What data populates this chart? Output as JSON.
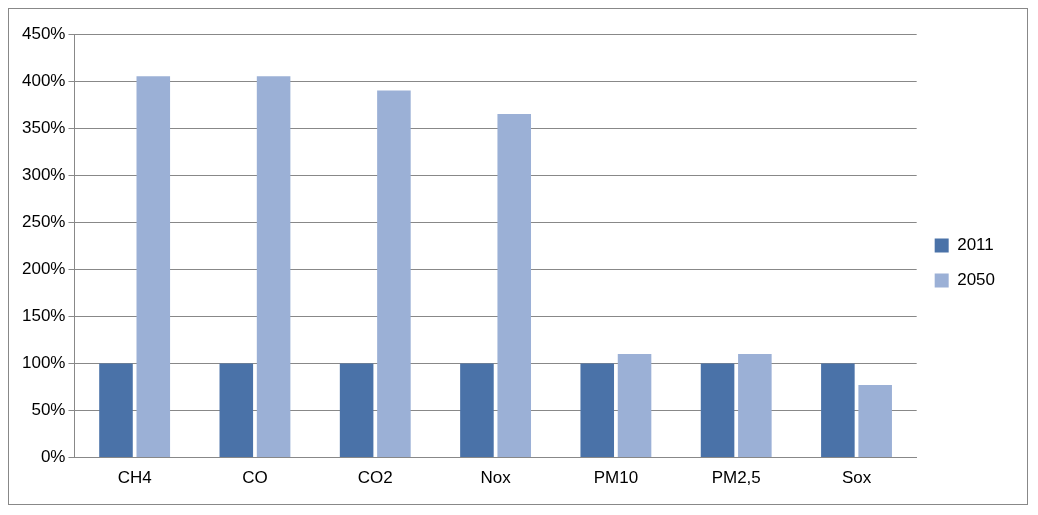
{
  "chart_data": {
    "type": "bar",
    "categories": [
      "CH4",
      "CO",
      "CO2",
      "Nox",
      "PM10",
      "PM2,5",
      "Sox"
    ],
    "series": [
      {
        "name": "2011",
        "color": "#4a72a8",
        "values": [
          100,
          100,
          100,
          100,
          100,
          100,
          100
        ]
      },
      {
        "name": "2050",
        "color": "#9bb0d6",
        "values": [
          405,
          405,
          390,
          365,
          110,
          110,
          77
        ]
      }
    ],
    "ylim": [
      0,
      450
    ],
    "yticks": [
      {
        "value": 0,
        "label": "0%"
      },
      {
        "value": 50,
        "label": "50%"
      },
      {
        "value": 100,
        "label": "100%"
      },
      {
        "value": 150,
        "label": "150%"
      },
      {
        "value": 200,
        "label": "200%"
      },
      {
        "value": 250,
        "label": "250%"
      },
      {
        "value": 300,
        "label": "300%"
      },
      {
        "value": 350,
        "label": "350%"
      },
      {
        "value": 400,
        "label": "400%"
      },
      {
        "value": 450,
        "label": "450%"
      }
    ],
    "grid": "y",
    "legend": "right"
  }
}
